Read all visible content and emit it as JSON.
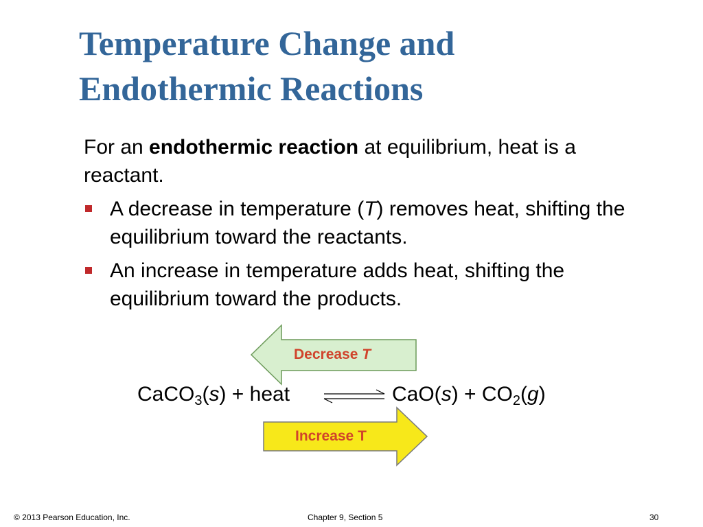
{
  "title": [
    "Temperature Change and",
    "Endothermic Reactions"
  ],
  "intro": [
    "For an ",
    "endothermic reaction",
    " at equilibrium, heat is a reactant."
  ],
  "bullets": [
    [
      "A decrease in temperature (",
      "T",
      ") removes heat, shifting the equilibrium toward the reactants."
    ],
    [
      "An increase in temperature adds heat, shifting the equilibrium toward the products."
    ]
  ],
  "arrows": {
    "decrease": [
      "Decrease ",
      "T"
    ],
    "increase": "Increase T"
  },
  "equation": {
    "left": [
      "CaCO",
      "3",
      "(",
      "s",
      ") + heat"
    ],
    "right": [
      "CaO(",
      "s",
      ") + CO",
      "2",
      "(",
      "g",
      ")"
    ]
  },
  "footer": {
    "left": "© 2013 Pearson Education, Inc.",
    "center": "Chapter 9, Section 5",
    "right": "30"
  }
}
